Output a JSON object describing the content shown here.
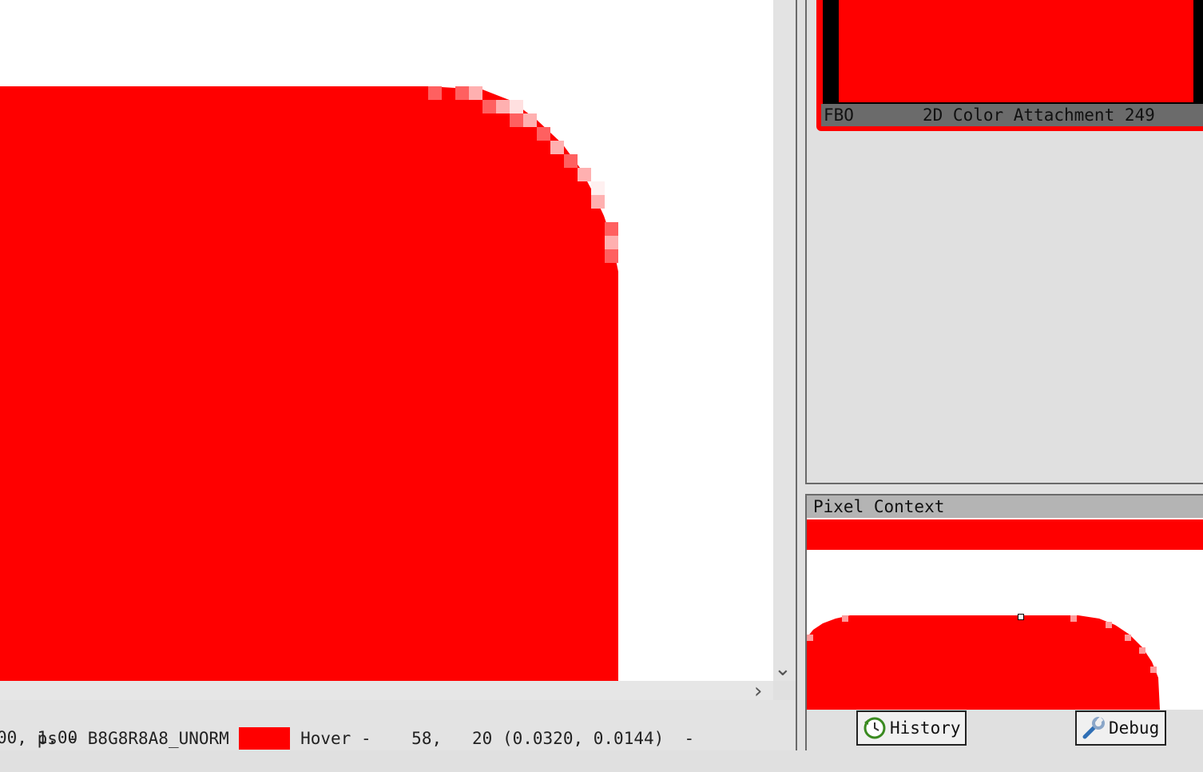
{
  "status": {
    "format_text": "ps - B8G8R8A8_UNORM",
    "swatch_color": "#ff0000",
    "hover_text": "Hover -    58,   20 (0.0320, 0.0144)  -",
    "line2_text": "00, 1.00"
  },
  "thumbnail": {
    "fbo_label": "FBO",
    "attachment_label": "2D Color Attachment 249"
  },
  "pixel_context": {
    "title": "Pixel Context"
  },
  "buttons": {
    "history_label": "History",
    "debug_label": "Debug"
  },
  "colors": {
    "fill": "#ff0000",
    "panel": "#e0e0e0",
    "label_bar": "#6b6b6b"
  }
}
